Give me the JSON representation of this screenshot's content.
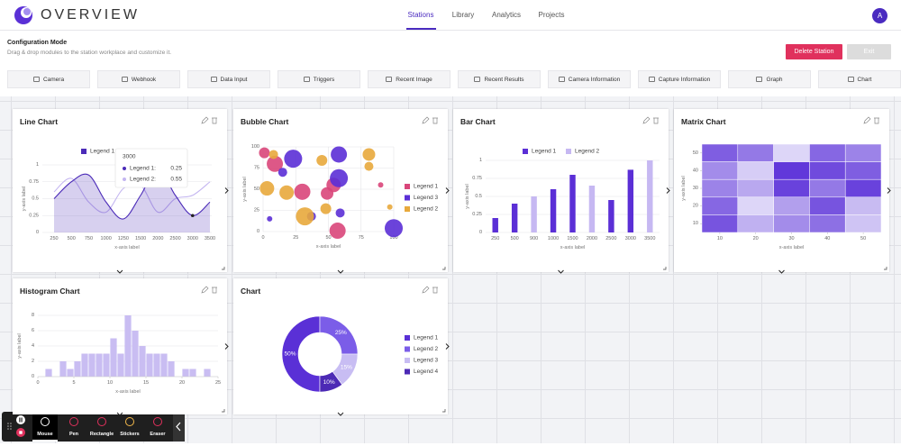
{
  "header": {
    "brand": "OVERVIEW",
    "nav": [
      "Stations",
      "Library",
      "Analytics",
      "Projects"
    ],
    "active_nav": 0,
    "avatar": "A"
  },
  "config": {
    "title": "Configuration Mode",
    "description": "Drag & drop modules to the station workplace and customize it.",
    "buttons": [
      "Delete Station",
      "Exit"
    ]
  },
  "modules": [
    "Camera",
    "Webhook",
    "Data Input",
    "Triggers",
    "Recent Image",
    "Recent Results",
    "Camera Information",
    "Capture Information",
    "Graph",
    "Chart"
  ],
  "cards": [
    {
      "title": "Line Chart",
      "chart_data": {
        "type": "line",
        "xlabel": "x-axis label",
        "ylabel": "y-axis label",
        "categories": [
          "250",
          "500",
          "750",
          "1000",
          "1250",
          "1500",
          "2000",
          "2500",
          "3000",
          "3500"
        ],
        "ylim": [
          0,
          1
        ],
        "yticks": [
          0,
          0.25,
          0.5,
          0.75,
          1
        ],
        "grid": true,
        "series": [
          {
            "name": "Legend 1",
            "color": "#4b2bb8",
            "area": true,
            "values": [
              0.5,
              0.75,
              0.85,
              0.45,
              0.2,
              0.55,
              0.95,
              0.55,
              0.25,
              0.45
            ]
          },
          {
            "name": "Legend 2",
            "color": "#c3b5f0",
            "values": [
              0.6,
              0.8,
              0.45,
              0.3,
              0.65,
              0.7,
              0.3,
              0.5,
              0.55,
              0.75
            ]
          }
        ],
        "tooltip": {
          "title": "3000",
          "items": [
            {
              "name": "Legend 1:",
              "value": 0.25
            },
            {
              "name": "Legend 2:",
              "value": 0.55
            }
          ]
        }
      }
    },
    {
      "title": "Bubble Chart",
      "chart_data": {
        "type": "bubble",
        "xlabel": "x-axis label",
        "ylabel": "y-axis label",
        "xlim": [
          0,
          100
        ],
        "xticks": [
          0,
          25,
          50,
          75,
          100
        ],
        "ylim": [
          0,
          100
        ],
        "yticks": [
          0,
          25,
          50,
          75,
          100
        ],
        "grid": true,
        "series": [
          {
            "name": "Legend 1",
            "color": "#d9467a",
            "x": [
              1,
              9,
              30,
              49,
              57,
              90,
              54
            ],
            "values": [
              93,
              80,
              47,
              45,
              1,
              55,
              55
            ],
            "sizes": [
              6,
              9,
              9,
              7,
              9,
              3,
              8
            ]
          },
          {
            "name": "Legend 3",
            "color": "#5b2fd6",
            "x": [
              23,
              58,
              58,
              5,
              15,
              37,
              59,
              100
            ],
            "values": [
              86,
              91,
              63,
              15,
              70,
              18,
              22,
              4
            ],
            "sizes": [
              10,
              9,
              10,
              3,
              5,
              5,
              5,
              10
            ]
          },
          {
            "name": "Legend 2",
            "color": "#e8a93c",
            "x": [
              8,
              3,
              18,
              32,
              45,
              48,
              81,
              81,
              97
            ],
            "values": [
              91,
              51,
              46,
              18,
              84,
              27,
              91,
              77,
              29
            ],
            "sizes": [
              5,
              8,
              8,
              10,
              6,
              6,
              7,
              5,
              3
            ]
          }
        ]
      }
    },
    {
      "title": "Bar Chart",
      "chart_data": {
        "type": "bar",
        "xlabel": "x-axis label",
        "ylabel": "y-axis label",
        "categories": [
          "250",
          "500",
          "900",
          "1000",
          "1500",
          "2000",
          "2500",
          "3000",
          "3500"
        ],
        "ylim": [
          0,
          1
        ],
        "yticks": [
          0,
          0.25,
          0.5,
          0.75,
          1
        ],
        "grid": true,
        "series": [
          {
            "name": "Legend 1",
            "color": "#5b2fd6",
            "values": [
              0.2,
              0.4,
              null,
              0.6,
              0.8,
              null,
              0.45,
              0.87,
              null
            ]
          },
          {
            "name": "Legend 2",
            "color": "#c6b8f2",
            "values": [
              null,
              null,
              0.5,
              null,
              null,
              0.65,
              null,
              null,
              1
            ]
          }
        ]
      }
    },
    {
      "title": "Matrix Chart",
      "chart_data": {
        "type": "matrix",
        "xlabel": "x-axis label",
        "ylabel": "y-axis label",
        "x": [
          10,
          20,
          30,
          40,
          50
        ],
        "y": [
          50,
          40,
          30,
          20,
          10
        ],
        "xlim": [
          5,
          55
        ],
        "xticks": [
          10,
          20,
          30,
          40,
          50
        ],
        "ylim": [
          5,
          55
        ],
        "yticks": [
          10,
          20,
          30,
          40,
          50
        ],
        "zlim": [
          0,
          1
        ],
        "color_range": [
          "#ece9fb",
          "#5a2fd8"
        ],
        "values": [
          [
            0.75,
            0.6,
            0.1,
            0.7,
            0.55
          ],
          [
            0.5,
            0.15,
            0.95,
            0.85,
            0.75
          ],
          [
            0.55,
            0.35,
            0.9,
            0.6,
            0.9
          ],
          [
            0.7,
            0.1,
            0.4,
            0.8,
            0.25
          ],
          [
            0.8,
            0.3,
            0.5,
            0.65,
            0.2
          ]
        ]
      }
    },
    {
      "title": "Histogram Chart",
      "chart_data": {
        "type": "histogram",
        "xlabel": "x-axis label",
        "ylabel": "y-axis label",
        "color": "#c9bdf2",
        "xlim": [
          0,
          25
        ],
        "xticks": [
          0,
          5,
          10,
          15,
          20,
          25
        ],
        "ylim": [
          0,
          8
        ],
        "yticks": [
          0,
          2,
          4,
          6,
          8
        ],
        "grid": true,
        "bins": [
          1,
          2,
          3,
          4,
          5,
          6,
          7,
          8,
          9,
          10,
          11,
          12,
          13,
          14,
          15,
          16,
          17,
          18,
          19,
          20,
          21,
          22,
          23,
          24
        ],
        "values": [
          1,
          0,
          2,
          1,
          2,
          3,
          3,
          3,
          3,
          5,
          3,
          8,
          6,
          4,
          3,
          3,
          3,
          2,
          0,
          1,
          1,
          0,
          1
        ]
      }
    },
    {
      "title": "Chart",
      "chart_data": {
        "type": "donut",
        "categories": [
          "Legend 1",
          "Legend 2",
          "Legend 3",
          "Legend 4"
        ],
        "values": [
          50,
          25,
          15,
          10
        ],
        "value_labels": [
          "50%",
          "25%",
          "15%",
          "10%"
        ],
        "colors": [
          "#5a30d6",
          "#7b5de8",
          "#c8bdf3",
          "#4c2ab5"
        ]
      }
    }
  ],
  "toolbar": {
    "tools": [
      "Mouse",
      "Pen",
      "Rectangle",
      "Stickers",
      "Eraser"
    ],
    "active_tool": 0
  }
}
